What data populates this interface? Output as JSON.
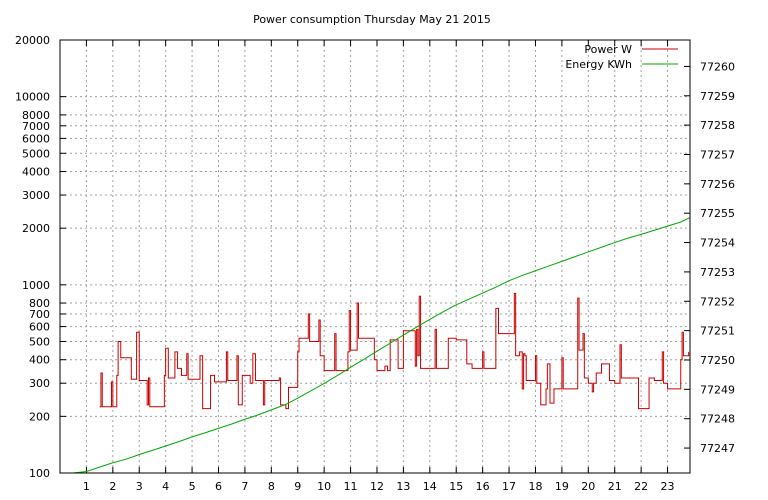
{
  "chart_data": {
    "type": "line",
    "title": "Power consumption Thursday May 21 2015",
    "xlabel": "",
    "ylabel": "",
    "y2label": "",
    "grid": true,
    "legend_placement": "top-right",
    "x_ticks": [
      1,
      2,
      3,
      4,
      5,
      6,
      7,
      8,
      9,
      10,
      11,
      12,
      13,
      14,
      15,
      16,
      17,
      18,
      19,
      20,
      21,
      22,
      23
    ],
    "xlim": [
      0,
      23.85
    ],
    "y_scale": "log",
    "ylim": [
      100,
      20000
    ],
    "y_ticks": [
      100,
      200,
      300,
      400,
      500,
      600,
      700,
      800,
      1000,
      2000,
      3000,
      4000,
      5000,
      6000,
      7000,
      8000,
      10000,
      20000
    ],
    "y2lim": [
      77246.15,
      77260.9
    ],
    "y2_ticks": [
      77247,
      77248,
      77249,
      77250,
      77251,
      77252,
      77253,
      77254,
      77255,
      77256,
      77257,
      77258,
      77259,
      77260
    ],
    "series": [
      {
        "name": "Power W",
        "axis": "y",
        "color": "#cc0000",
        "points": [
          [
            1.5,
            225
          ],
          [
            1.55,
            340
          ],
          [
            1.6,
            225
          ],
          [
            1.9,
            225
          ],
          [
            1.95,
            305
          ],
          [
            2.0,
            225
          ],
          [
            2.15,
            330
          ],
          [
            2.2,
            500
          ],
          [
            2.3,
            410
          ],
          [
            2.7,
            315
          ],
          [
            2.9,
            560
          ],
          [
            3.0,
            310
          ],
          [
            3.3,
            230
          ],
          [
            3.35,
            320
          ],
          [
            3.4,
            225
          ],
          [
            3.95,
            330
          ],
          [
            4.0,
            460
          ],
          [
            4.1,
            320
          ],
          [
            4.35,
            440
          ],
          [
            4.45,
            360
          ],
          [
            4.6,
            330
          ],
          [
            4.8,
            430
          ],
          [
            4.85,
            315
          ],
          [
            5.3,
            420
          ],
          [
            5.4,
            220
          ],
          [
            5.7,
            330
          ],
          [
            5.85,
            305
          ],
          [
            6.3,
            440
          ],
          [
            6.35,
            310
          ],
          [
            6.7,
            420
          ],
          [
            6.75,
            230
          ],
          [
            6.9,
            330
          ],
          [
            7.2,
            300
          ],
          [
            7.3,
            430
          ],
          [
            7.4,
            310
          ],
          [
            7.7,
            230
          ],
          [
            7.75,
            310
          ],
          [
            8.3,
            320
          ],
          [
            8.35,
            230
          ],
          [
            8.55,
            220
          ],
          [
            8.65,
            285
          ],
          [
            9.0,
            440
          ],
          [
            9.05,
            520
          ],
          [
            9.4,
            700
          ],
          [
            9.45,
            500
          ],
          [
            9.8,
            650
          ],
          [
            9.85,
            420
          ],
          [
            10.0,
            350
          ],
          [
            10.4,
            550
          ],
          [
            10.45,
            350
          ],
          [
            10.9,
            440
          ],
          [
            10.95,
            730
          ],
          [
            11.0,
            450
          ],
          [
            11.25,
            800
          ],
          [
            11.3,
            520
          ],
          [
            11.9,
            400
          ],
          [
            12.0,
            350
          ],
          [
            12.3,
            370
          ],
          [
            12.4,
            350
          ],
          [
            12.5,
            510
          ],
          [
            12.8,
            360
          ],
          [
            13.0,
            570
          ],
          [
            13.45,
            370
          ],
          [
            13.5,
            580
          ],
          [
            13.55,
            420
          ],
          [
            13.6,
            870
          ],
          [
            13.65,
            360
          ],
          [
            14.2,
            580
          ],
          [
            14.25,
            360
          ],
          [
            14.7,
            520
          ],
          [
            15.0,
            510
          ],
          [
            15.4,
            380
          ],
          [
            15.6,
            360
          ],
          [
            16.0,
            440
          ],
          [
            16.05,
            360
          ],
          [
            16.5,
            750
          ],
          [
            16.6,
            550
          ],
          [
            17.2,
            900
          ],
          [
            17.25,
            420
          ],
          [
            17.4,
            440
          ],
          [
            17.5,
            280
          ],
          [
            17.55,
            430
          ],
          [
            17.6,
            420
          ],
          [
            17.65,
            310
          ],
          [
            18.0,
            420
          ],
          [
            18.05,
            300
          ],
          [
            18.2,
            230
          ],
          [
            18.4,
            280
          ],
          [
            18.45,
            380
          ],
          [
            18.55,
            235
          ],
          [
            18.7,
            280
          ],
          [
            19.0,
            410
          ],
          [
            19.05,
            280
          ],
          [
            19.6,
            850
          ],
          [
            19.65,
            450
          ],
          [
            19.8,
            550
          ],
          [
            19.85,
            320
          ],
          [
            20.0,
            300
          ],
          [
            20.15,
            270
          ],
          [
            20.2,
            300
          ],
          [
            20.3,
            340
          ],
          [
            20.5,
            380
          ],
          [
            20.8,
            310
          ],
          [
            21.0,
            300
          ],
          [
            21.2,
            480
          ],
          [
            21.25,
            320
          ],
          [
            21.8,
            320
          ],
          [
            21.9,
            220
          ],
          [
            22.3,
            320
          ],
          [
            22.5,
            310
          ],
          [
            22.8,
            440
          ],
          [
            22.85,
            300
          ],
          [
            23.0,
            280
          ],
          [
            23.5,
            400
          ],
          [
            23.55,
            560
          ],
          [
            23.6,
            420
          ],
          [
            23.8,
            440
          ]
        ]
      },
      {
        "name": "Energy KWh",
        "axis": "y2",
        "color": "#00aa00",
        "points": [
          [
            0.5,
            77246.15
          ],
          [
            1,
            77246.2
          ],
          [
            1.5,
            77246.35
          ],
          [
            2,
            77246.5
          ],
          [
            2.5,
            77246.62
          ],
          [
            3,
            77246.78
          ],
          [
            3.5,
            77246.92
          ],
          [
            4,
            77247.07
          ],
          [
            4.5,
            77247.22
          ],
          [
            5,
            77247.38
          ],
          [
            5.5,
            77247.52
          ],
          [
            6,
            77247.67
          ],
          [
            6.5,
            77247.82
          ],
          [
            7,
            77247.98
          ],
          [
            7.5,
            77248.13
          ],
          [
            8,
            77248.3
          ],
          [
            8.5,
            77248.47
          ],
          [
            9,
            77248.7
          ],
          [
            9.5,
            77248.95
          ],
          [
            10,
            77249.2
          ],
          [
            10.5,
            77249.47
          ],
          [
            11,
            77249.75
          ],
          [
            11.5,
            77250.02
          ],
          [
            12,
            77250.3
          ],
          [
            12.5,
            77250.57
          ],
          [
            13,
            77250.85
          ],
          [
            13.5,
            77251.12
          ],
          [
            14,
            77251.38
          ],
          [
            14.5,
            77251.64
          ],
          [
            15,
            77251.88
          ],
          [
            15.5,
            77252.08
          ],
          [
            16,
            77252.28
          ],
          [
            16.5,
            77252.48
          ],
          [
            17,
            77252.7
          ],
          [
            17.5,
            77252.88
          ],
          [
            18,
            77253.04
          ],
          [
            18.5,
            77253.2
          ],
          [
            19,
            77253.36
          ],
          [
            19.5,
            77253.52
          ],
          [
            20,
            77253.68
          ],
          [
            20.5,
            77253.84
          ],
          [
            21,
            77254
          ],
          [
            21.5,
            77254.15
          ],
          [
            22,
            77254.28
          ],
          [
            22.5,
            77254.42
          ],
          [
            23,
            77254.56
          ],
          [
            23.5,
            77254.7
          ],
          [
            23.85,
            77254.85
          ]
        ]
      }
    ]
  }
}
